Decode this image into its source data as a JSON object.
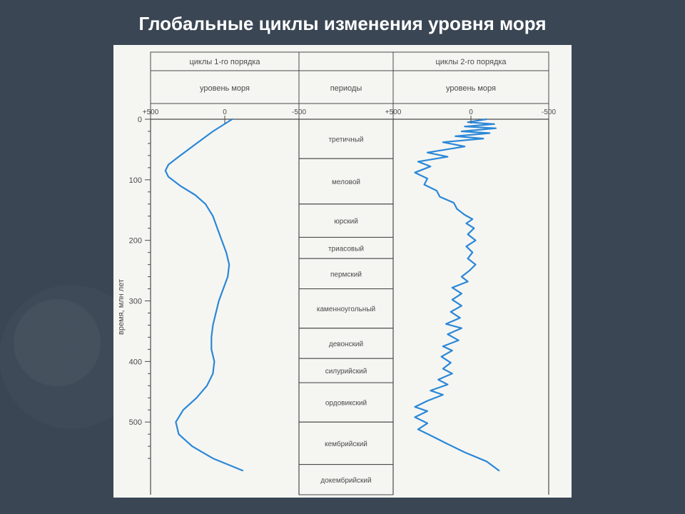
{
  "title": "Глобальные циклы изменения уровня моря",
  "figure": {
    "background": "#f5f6f2",
    "axis_color": "#4a4a4a",
    "y_axis": {
      "label": "время, млн лет",
      "min": 0,
      "max": 570,
      "major_tick_step": 100,
      "minor_tick_step": 20,
      "label_fontsize": 11
    },
    "x_axis": {
      "label": "уровень моря",
      "ticks": [
        "+500",
        "0",
        "-500"
      ],
      "label_fontsize": 11
    },
    "panel_left": {
      "header": "циклы 1-го порядка",
      "line_color": "#2b87d8",
      "line_width": 2.2,
      "points": [
        [
          0,
          -50
        ],
        [
          20,
          80
        ],
        [
          40,
          190
        ],
        [
          60,
          300
        ],
        [
          75,
          380
        ],
        [
          85,
          400
        ],
        [
          95,
          380
        ],
        [
          110,
          300
        ],
        [
          125,
          200
        ],
        [
          140,
          130
        ],
        [
          160,
          80
        ],
        [
          180,
          50
        ],
        [
          200,
          20
        ],
        [
          220,
          -10
        ],
        [
          240,
          -30
        ],
        [
          260,
          -20
        ],
        [
          280,
          10
        ],
        [
          300,
          40
        ],
        [
          320,
          60
        ],
        [
          340,
          80
        ],
        [
          360,
          90
        ],
        [
          380,
          90
        ],
        [
          400,
          70
        ],
        [
          420,
          80
        ],
        [
          440,
          120
        ],
        [
          460,
          190
        ],
        [
          480,
          280
        ],
        [
          500,
          330
        ],
        [
          520,
          310
        ],
        [
          540,
          220
        ],
        [
          560,
          80
        ],
        [
          580,
          -120
        ]
      ]
    },
    "panel_right": {
      "header": "циклы 2-го порядка",
      "line_color": "#2b87d8",
      "line_width": 2.2,
      "points": [
        [
          0,
          -100
        ],
        [
          5,
          20
        ],
        [
          8,
          -150
        ],
        [
          12,
          40
        ],
        [
          15,
          -160
        ],
        [
          20,
          60
        ],
        [
          23,
          -120
        ],
        [
          28,
          100
        ],
        [
          32,
          -80
        ],
        [
          38,
          180
        ],
        [
          45,
          40
        ],
        [
          55,
          280
        ],
        [
          62,
          150
        ],
        [
          70,
          340
        ],
        [
          78,
          260
        ],
        [
          88,
          360
        ],
        [
          98,
          280
        ],
        [
          108,
          300
        ],
        [
          118,
          220
        ],
        [
          128,
          200
        ],
        [
          138,
          110
        ],
        [
          148,
          90
        ],
        [
          158,
          40
        ],
        [
          165,
          -10
        ],
        [
          172,
          30
        ],
        [
          180,
          -20
        ],
        [
          190,
          20
        ],
        [
          200,
          -30
        ],
        [
          210,
          30
        ],
        [
          220,
          -10
        ],
        [
          230,
          20
        ],
        [
          240,
          -30
        ],
        [
          250,
          10
        ],
        [
          260,
          60
        ],
        [
          268,
          20
        ],
        [
          278,
          120
        ],
        [
          288,
          60
        ],
        [
          298,
          120
        ],
        [
          308,
          60
        ],
        [
          318,
          130
        ],
        [
          328,
          70
        ],
        [
          338,
          160
        ],
        [
          345,
          60
        ],
        [
          355,
          150
        ],
        [
          365,
          80
        ],
        [
          375,
          180
        ],
        [
          382,
          120
        ],
        [
          392,
          190
        ],
        [
          402,
          130
        ],
        [
          412,
          180
        ],
        [
          420,
          120
        ],
        [
          430,
          210
        ],
        [
          438,
          150
        ],
        [
          448,
          260
        ],
        [
          455,
          180
        ],
        [
          465,
          280
        ],
        [
          475,
          360
        ],
        [
          482,
          280
        ],
        [
          492,
          360
        ],
        [
          502,
          280
        ],
        [
          512,
          340
        ],
        [
          522,
          260
        ],
        [
          535,
          160
        ],
        [
          550,
          40
        ],
        [
          565,
          -100
        ],
        [
          580,
          -180
        ]
      ]
    },
    "periods": {
      "header": "периоды",
      "list": [
        {
          "name": "третичный",
          "end": 65
        },
        {
          "name": "меловой",
          "end": 140
        },
        {
          "name": "юрский",
          "end": 195
        },
        {
          "name": "триасовый",
          "end": 230
        },
        {
          "name": "пермский",
          "end": 280
        },
        {
          "name": "каменноугольный",
          "end": 345
        },
        {
          "name": "девонский",
          "end": 395
        },
        {
          "name": "силурийский",
          "end": 435
        },
        {
          "name": "ордовикский",
          "end": 500
        },
        {
          "name": "кембрийский",
          "end": 570
        },
        {
          "name": "докембрийский",
          "end": 620
        }
      ]
    }
  }
}
